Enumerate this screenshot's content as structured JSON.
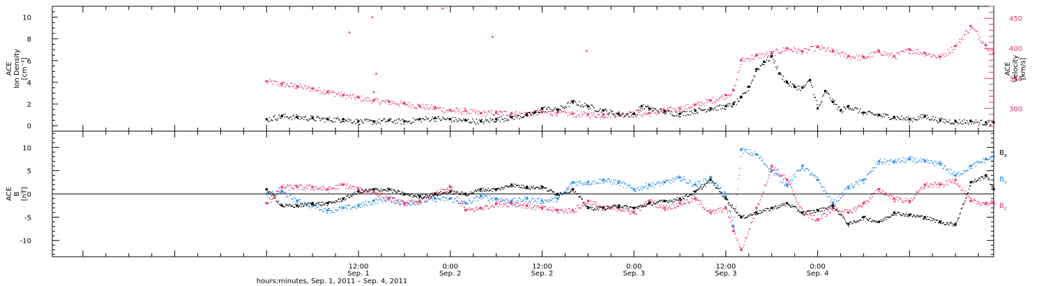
{
  "chart_data": [
    {
      "type": "scatter",
      "panel": "top",
      "ylabel": "ACE\nIon Density\n[cm⁻³]",
      "ylabel_right": "ACE\nVelocity\n[km/s]",
      "ylim": [
        -0.5,
        11
      ],
      "yticks": [
        0,
        2,
        4,
        6,
        8,
        10
      ],
      "ylim_right": [
        262,
        470
      ],
      "yticks_right": [
        300,
        350,
        400,
        450
      ],
      "colors": {
        "density": "#000000",
        "velocity": "#e8386a"
      },
      "series": [
        {
          "name": "Ion Density",
          "axis": "left",
          "x": [
            0,
            2,
            4,
            6,
            8,
            10,
            12,
            14,
            16,
            18,
            20,
            22,
            24,
            26,
            28,
            30,
            32,
            34,
            35,
            36,
            38,
            40,
            42,
            44,
            46,
            48,
            49,
            50,
            52,
            54,
            56,
            58,
            60,
            61,
            62,
            63,
            64,
            65,
            66,
            67,
            68,
            69,
            70,
            71,
            72,
            73,
            74,
            75,
            76,
            78,
            80,
            82,
            84,
            86,
            88,
            90,
            92,
            94,
            95
          ],
          "values": [
            0.6,
            0.9,
            0.8,
            0.7,
            0.6,
            0.6,
            0.4,
            0.4,
            0.5,
            0.4,
            0.6,
            0.7,
            0.6,
            0.5,
            0.4,
            0.6,
            0.8,
            1.0,
            1.2,
            1.6,
            1.5,
            2.2,
            1.8,
            1.4,
            1.1,
            1.1,
            1.8,
            1.6,
            1.3,
            1.1,
            1.4,
            1.6,
            1.8,
            2.0,
            2.6,
            3.6,
            5.2,
            5.9,
            6.4,
            4.8,
            4.0,
            3.6,
            3.5,
            4.2,
            1.6,
            3.2,
            2.2,
            1.4,
            1.8,
            1.2,
            1.0,
            0.8,
            0.6,
            0.9,
            0.5,
            0.4,
            0.4,
            0.3,
            0.3
          ]
        },
        {
          "name": "Velocity",
          "axis": "right",
          "x": [
            0,
            2,
            4,
            6,
            8,
            10,
            12,
            14,
            16,
            18,
            20,
            22,
            24,
            26,
            28,
            30,
            32,
            34,
            36,
            38,
            40,
            42,
            44,
            46,
            48,
            50,
            52,
            54,
            56,
            58,
            60,
            61,
            62,
            64,
            66,
            68,
            70,
            72,
            74,
            76,
            78,
            80,
            82,
            84,
            86,
            88,
            90,
            92,
            94,
            95
          ],
          "values": [
            345,
            341,
            337,
            333,
            328,
            322,
            318,
            313,
            311,
            308,
            304,
            301,
            297,
            296,
            292,
            293,
            292,
            291,
            294,
            293,
            291,
            290,
            289,
            290,
            291,
            292,
            297,
            300,
            306,
            313,
            322,
            330,
            380,
            388,
            392,
            400,
            395,
            402,
            395,
            387,
            385,
            395,
            387,
            398,
            392,
            386,
            404,
            437,
            405,
            392
          ]
        }
      ],
      "outliers": [
        {
          "x": 10.8,
          "y": 8.6
        },
        {
          "x": 13.8,
          "y": 10.0
        },
        {
          "x": 14.3,
          "y": 4.8
        },
        {
          "x": 14.0,
          "y": 3.1
        },
        {
          "x": 23.0,
          "y": 10.8
        },
        {
          "x": 29.5,
          "y": 8.2
        },
        {
          "x": 41.8,
          "y": 6.9
        },
        {
          "x": 68.0,
          "y": 10.8
        }
      ]
    },
    {
      "type": "scatter",
      "panel": "bottom",
      "ylabel": "ACE\nB\n[nT]",
      "ylim": [
        -13.5,
        13.5
      ],
      "yticks": [
        -10,
        -5,
        0,
        5,
        10
      ],
      "legend": [
        {
          "label": "B",
          "sub": "x",
          "color": "#000000"
        },
        {
          "label": "B",
          "sub": "y",
          "color": "#2a8be8"
        },
        {
          "label": "B",
          "sub": "z",
          "color": "#e8386a"
        }
      ],
      "series": [
        {
          "name": "Bx",
          "x": [
            0,
            2,
            4,
            6,
            8,
            10,
            12,
            14,
            16,
            18,
            20,
            22,
            24,
            26,
            28,
            30,
            32,
            34,
            36,
            38,
            40,
            42,
            44,
            46,
            48,
            50,
            52,
            54,
            56,
            58,
            60,
            62,
            64,
            66,
            68,
            70,
            72,
            74,
            76,
            78,
            80,
            82,
            84,
            86,
            88,
            90,
            92,
            94,
            95
          ],
          "values": [
            1.0,
            -2.5,
            -2.5,
            -2.0,
            -2.0,
            -1.0,
            0.5,
            1.0,
            1.0,
            0.0,
            -0.5,
            0.0,
            0.5,
            0.0,
            1.0,
            1.0,
            2.0,
            1.5,
            1.5,
            0.0,
            1.0,
            -3.0,
            -3.0,
            -2.5,
            -3.0,
            -2.0,
            -1.5,
            -1.0,
            0.5,
            3.0,
            -1.0,
            -5.0,
            -4.0,
            -3.0,
            -2.0,
            -4.0,
            -3.5,
            -2.5,
            -6.5,
            -5.0,
            -6.0,
            -4.0,
            -4.5,
            -5.0,
            -6.0,
            -6.5,
            2.5,
            4.0,
            1.0
          ]
        },
        {
          "name": "By",
          "x": [
            0,
            2,
            4,
            6,
            8,
            10,
            12,
            14,
            16,
            18,
            20,
            22,
            24,
            26,
            28,
            30,
            32,
            34,
            36,
            38,
            40,
            42,
            44,
            46,
            48,
            50,
            52,
            54,
            56,
            58,
            60,
            61,
            62,
            64,
            66,
            68,
            70,
            72,
            74,
            76,
            78,
            80,
            82,
            84,
            86,
            88,
            90,
            92,
            94,
            95
          ],
          "values": [
            0.0,
            0.5,
            -1.5,
            -2.5,
            -3.5,
            -3.0,
            -2.5,
            -1.5,
            -1.0,
            -2.0,
            -1.5,
            -1.0,
            -1.0,
            -2.0,
            -0.5,
            -1.0,
            -1.5,
            -1.0,
            -1.5,
            -1.0,
            2.5,
            2.5,
            3.0,
            2.5,
            1.0,
            2.0,
            2.5,
            3.5,
            2.0,
            3.5,
            -0.5,
            -7.0,
            9.5,
            8.5,
            5.0,
            2.0,
            6.0,
            3.0,
            -2.0,
            1.5,
            3.0,
            7.0,
            7.0,
            7.5,
            7.0,
            6.5,
            4.0,
            6.0,
            7.5,
            8.0
          ]
        },
        {
          "name": "Bz",
          "x": [
            0,
            2,
            4,
            6,
            8,
            10,
            12,
            14,
            16,
            18,
            20,
            22,
            24,
            26,
            28,
            30,
            32,
            34,
            36,
            38,
            40,
            42,
            44,
            46,
            48,
            50,
            52,
            54,
            56,
            58,
            60,
            61,
            62,
            64,
            66,
            68,
            70,
            72,
            74,
            76,
            78,
            80,
            82,
            84,
            86,
            88,
            90,
            92,
            94,
            95
          ],
          "values": [
            -2.0,
            1.5,
            1.5,
            1.5,
            1.0,
            2.0,
            1.0,
            0.5,
            -1.0,
            -2.0,
            -1.5,
            0.0,
            1.5,
            -3.5,
            -3.0,
            -2.0,
            -2.0,
            -2.5,
            -3.0,
            -3.5,
            -3.5,
            -1.5,
            -3.0,
            -3.0,
            -4.0,
            -1.5,
            -3.0,
            -2.0,
            -1.0,
            -4.0,
            -3.0,
            -8.0,
            -12.0,
            -3.0,
            6.0,
            3.0,
            -4.0,
            -5.5,
            -3.0,
            -4.0,
            -2.0,
            1.0,
            -1.0,
            -1.5,
            2.0,
            2.0,
            3.0,
            -1.5,
            -2.0,
            -2.0
          ]
        }
      ]
    }
  ],
  "x_axis": {
    "range_hours": [
      -28,
      95
    ],
    "ticks": [
      {
        "x": 12,
        "time": "12:00",
        "day": "Sep. 1"
      },
      {
        "x": 24,
        "time": "0:00",
        "day": "Sep. 2"
      },
      {
        "x": 36,
        "time": "12:00",
        "day": "Sep. 2"
      },
      {
        "x": 48,
        "time": "0:00",
        "day": "Sep. 3"
      },
      {
        "x": 60,
        "time": "12:00",
        "day": "Sep. 3"
      },
      {
        "x": 72,
        "time": "0:00",
        "day": "Sep. 4"
      }
    ],
    "title": "hours:minutes, Sep.  1, 2011 – Sep.  4, 2011"
  }
}
